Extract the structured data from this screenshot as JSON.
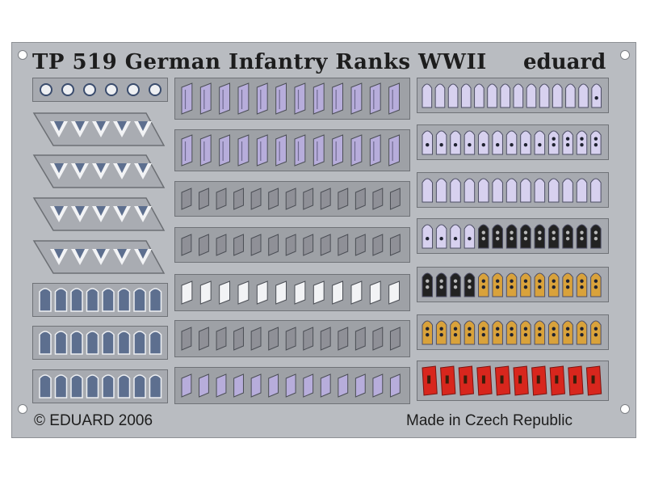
{
  "header": {
    "title": "TP 519 German Infantry Ranks WWII",
    "brand": "eduard"
  },
  "footer": {
    "copyright": "© EDUARD 2006",
    "origin": "Made in Czech Republic"
  },
  "colors": {
    "fret_metal": "#b9bcc1",
    "etched_panel": "#a7aab0",
    "chevron_blue": "#5d6f8f",
    "shoulder_lavender": "#d7d1ef",
    "collar_patch_lavender": "#b7addb",
    "collar_patch_grey": "#8f9097",
    "insignia_black": "#222222",
    "insignia_gold": "#d9a23b",
    "insignia_red": "#d8261d"
  },
  "sections": {
    "left": [
      "stars-row",
      "chevrons-1",
      "chevrons-2",
      "chevrons-3",
      "chevrons-4",
      "shoulder-blue-1",
      "shoulder-blue-2",
      "shoulder-blue-3"
    ],
    "middle": [
      "collar-lavender-1",
      "collar-lavender-2",
      "collar-grey-1",
      "collar-grey-2",
      "collar-white",
      "collar-grey-3",
      "collar-lavender-3"
    ],
    "right": [
      "shoulder-lavender-1",
      "shoulder-lavender-2",
      "shoulder-lavender-3",
      "shoulder-black-1",
      "shoulder-black-gold",
      "shoulder-gold",
      "shoulder-red"
    ]
  }
}
